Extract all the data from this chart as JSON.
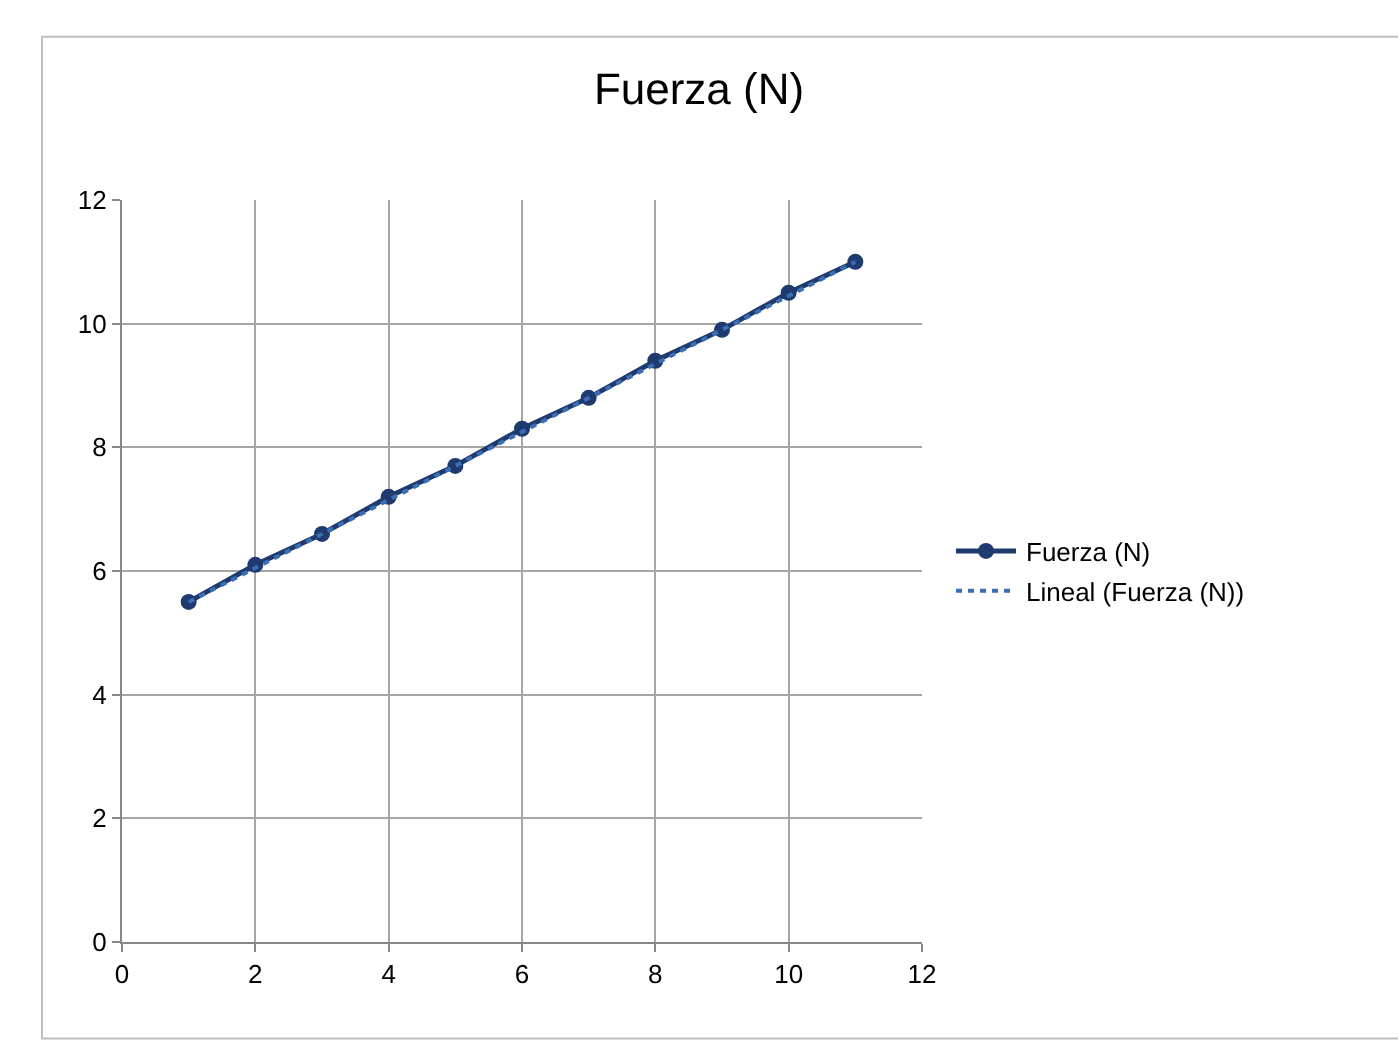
{
  "chart_data": {
    "type": "line",
    "title": "Fuerza (N)",
    "x": [
      1,
      2,
      3,
      4,
      5,
      6,
      7,
      8,
      9,
      10,
      11
    ],
    "series": [
      {
        "name": "Fuerza (N)",
        "color": "#1f3a6e",
        "values": [
          5.5,
          6.1,
          6.6,
          7.2,
          7.7,
          8.3,
          8.8,
          9.4,
          9.9,
          10.5,
          11.0
        ],
        "marker": "circle",
        "line_style": "solid"
      },
      {
        "name": "Lineal (Fuerza (N))",
        "type": "line",
        "color": "#3a6fb5",
        "x": [
          1,
          11
        ],
        "values": [
          5.5,
          11.0
        ],
        "marker": "none",
        "line_style": "dotted"
      }
    ],
    "xlim": [
      0,
      12
    ],
    "xticks": [
      0,
      2,
      4,
      6,
      8,
      10,
      12
    ],
    "ylim": [
      0,
      12
    ],
    "yticks": [
      0,
      2,
      4,
      6,
      8,
      10,
      12
    ],
    "grid": true,
    "legend": "right"
  }
}
